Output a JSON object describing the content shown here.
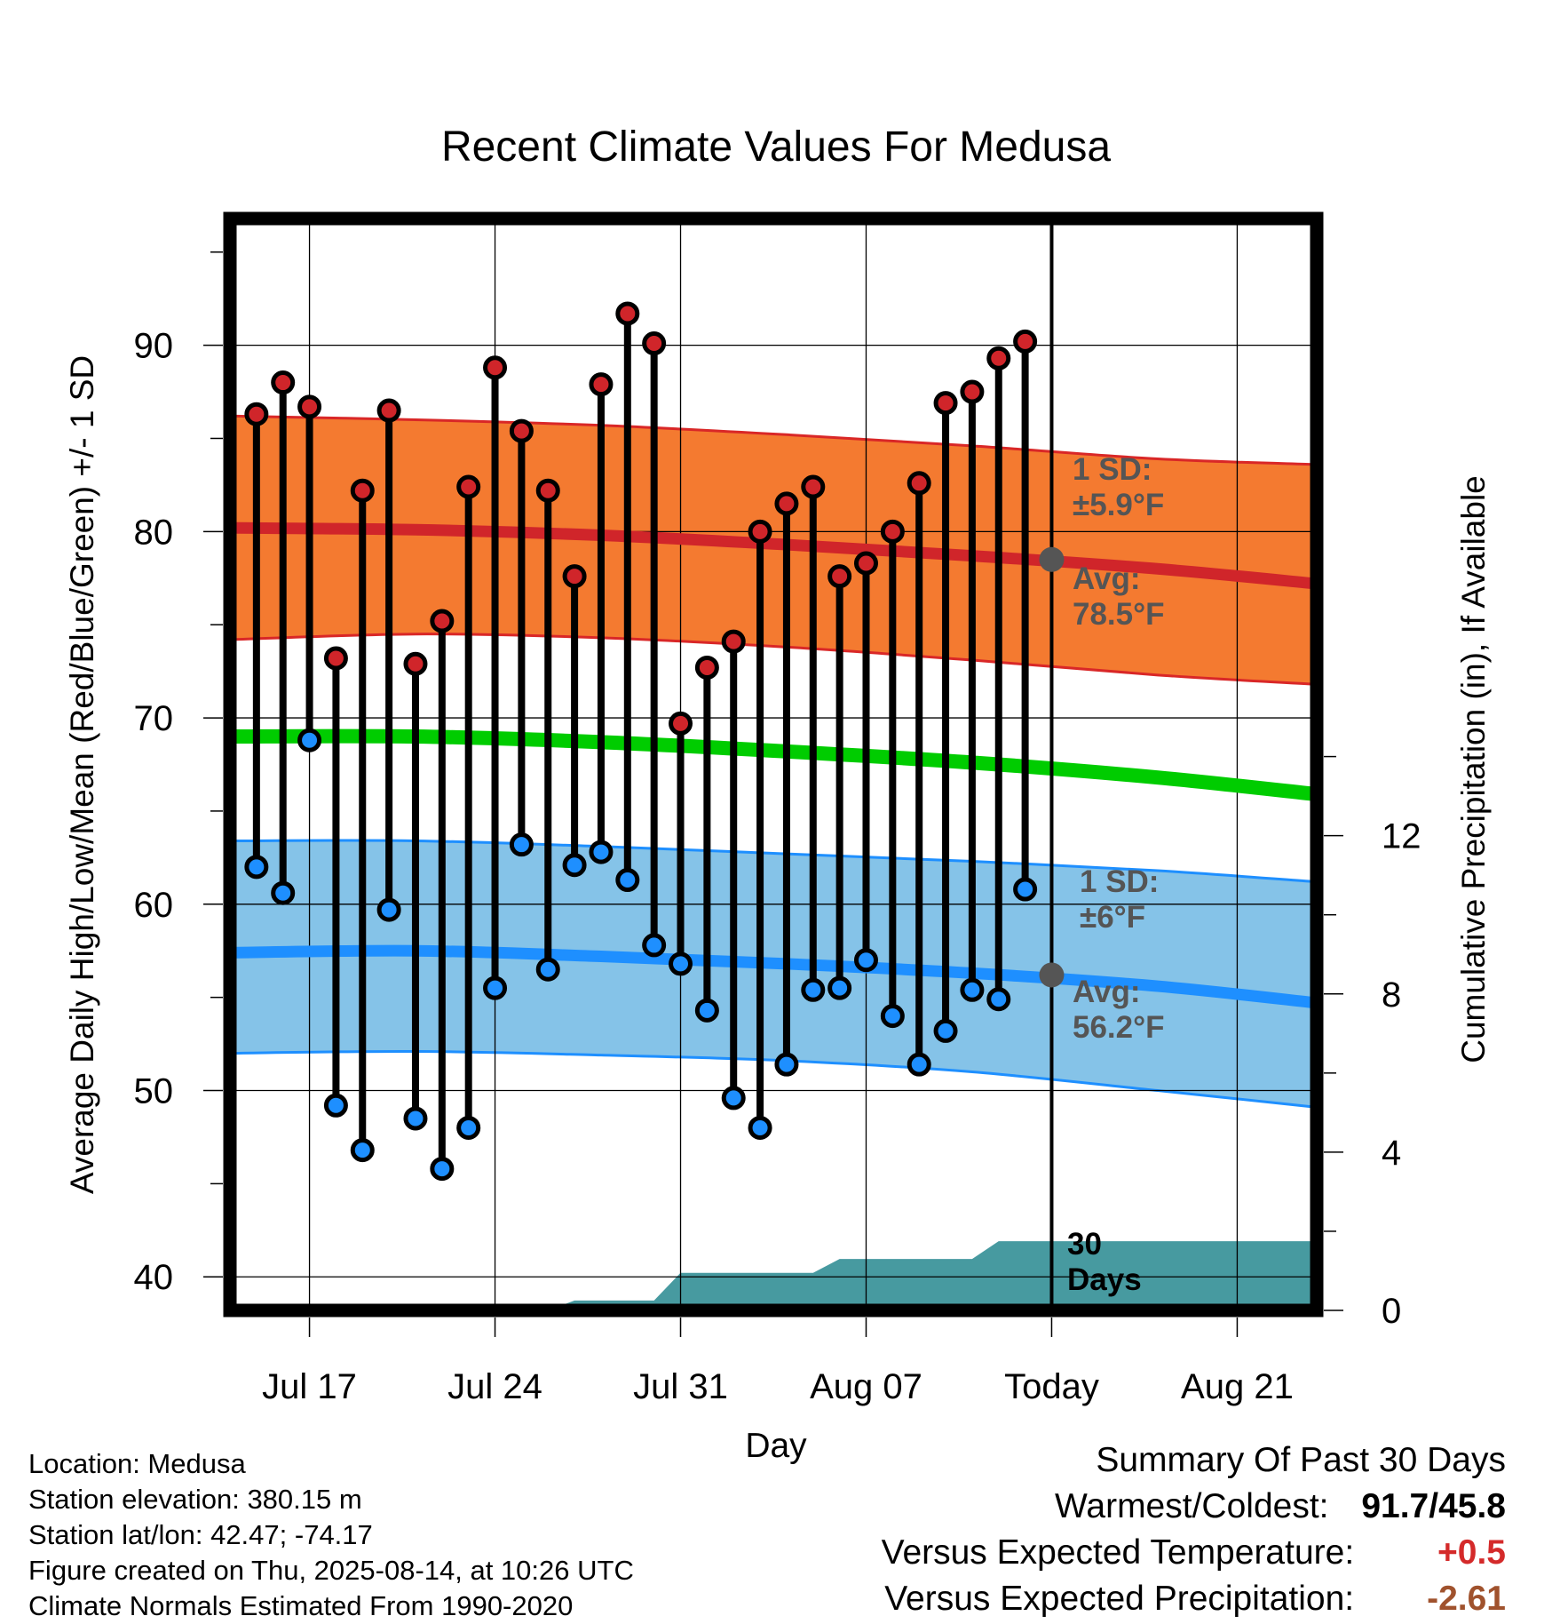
{
  "chart_data": {
    "type": "line",
    "title": "Recent Climate Values For Medusa",
    "xlabel": "Day",
    "ylabel": "Average Daily High/Low/Mean (Red/Blue/Green) +/- 1 SD",
    "y2label": "Cumulative Precipitation (in), If Available",
    "ylim": [
      38.2,
      96.8
    ],
    "y2lim": [
      0,
      27.6
    ],
    "yticks": [
      40,
      50,
      60,
      70,
      80,
      90
    ],
    "y2ticks": [
      0,
      4,
      8,
      12
    ],
    "xlim": [
      "2025-07-14",
      "2025-08-24"
    ],
    "xticks": [
      {
        "date": "2025-07-17",
        "label": "Jul 17"
      },
      {
        "date": "2025-07-24",
        "label": "Jul 24"
      },
      {
        "date": "2025-07-31",
        "label": "Jul 31"
      },
      {
        "date": "2025-08-07",
        "label": "Aug 07"
      },
      {
        "date": "2025-08-14",
        "label": "Today"
      },
      {
        "date": "2025-08-21",
        "label": "Aug 21"
      }
    ],
    "grid": true,
    "today": "2025-08-14",
    "normal_dates": [
      "2025-07-14",
      "2025-07-21",
      "2025-07-28",
      "2025-08-04",
      "2025-08-11",
      "2025-08-18",
      "2025-08-24"
    ],
    "normal_high": {
      "mean": [
        80.2,
        80.1,
        79.8,
        79.3,
        78.7,
        78.0,
        77.2
      ],
      "upper": [
        86.2,
        86.0,
        85.7,
        85.2,
        84.6,
        83.9,
        83.6
      ],
      "lower": [
        74.2,
        74.5,
        74.3,
        73.8,
        73.1,
        72.3,
        71.8
      ]
    },
    "normal_low": {
      "mean": [
        57.4,
        57.5,
        57.2,
        56.8,
        56.3,
        55.6,
        54.7
      ],
      "upper": [
        63.4,
        63.4,
        63.1,
        62.7,
        62.3,
        61.8,
        61.2
      ],
      "lower": [
        52.0,
        52.1,
        51.9,
        51.6,
        51.0,
        50.0,
        49.1
      ]
    },
    "normal_mean": [
      69.0,
      69.0,
      68.7,
      68.2,
      67.6,
      66.8,
      65.9
    ],
    "daily": {
      "dates": [
        "2025-07-15",
        "2025-07-16",
        "2025-07-17",
        "2025-07-18",
        "2025-07-19",
        "2025-07-20",
        "2025-07-21",
        "2025-07-22",
        "2025-07-23",
        "2025-07-24",
        "2025-07-25",
        "2025-07-26",
        "2025-07-27",
        "2025-07-28",
        "2025-07-29",
        "2025-07-30",
        "2025-07-31",
        "2025-08-01",
        "2025-08-02",
        "2025-08-03",
        "2025-08-04",
        "2025-08-05",
        "2025-08-06",
        "2025-08-07",
        "2025-08-08",
        "2025-08-09",
        "2025-08-10",
        "2025-08-11",
        "2025-08-12",
        "2025-08-13"
      ],
      "high": [
        86.3,
        88.0,
        86.7,
        73.2,
        82.2,
        86.5,
        72.9,
        75.2,
        82.4,
        88.8,
        85.4,
        82.2,
        77.6,
        87.9,
        91.7,
        90.1,
        69.7,
        72.7,
        74.1,
        80.0,
        81.5,
        82.4,
        77.6,
        78.3,
        80.0,
        82.6,
        86.9,
        87.5,
        89.3,
        90.2
      ],
      "low": [
        62.0,
        60.6,
        68.8,
        49.2,
        46.8,
        59.7,
        48.5,
        45.8,
        48.0,
        55.5,
        63.2,
        56.5,
        62.1,
        62.8,
        61.3,
        57.8,
        56.8,
        54.3,
        49.6,
        48.0,
        51.4,
        55.4,
        55.5,
        57.0,
        54.0,
        51.4,
        53.2,
        55.4,
        54.9,
        60.8
      ]
    },
    "precip": {
      "dates": [
        "2025-07-14",
        "2025-07-26",
        "2025-07-27",
        "2025-07-30",
        "2025-07-31",
        "2025-08-05",
        "2025-08-06",
        "2025-08-11",
        "2025-08-12",
        "2025-08-24"
      ],
      "values": [
        0,
        0,
        0.25,
        0.25,
        0.95,
        0.95,
        1.3,
        1.3,
        1.75,
        1.75
      ]
    },
    "annotations": {
      "high_sd": {
        "line1": "1 SD:",
        "line2": "±5.9°F"
      },
      "high_avg": {
        "line1": "Avg:",
        "line2": "78.5°F",
        "value": 78.5
      },
      "low_sd": {
        "line1": "1 SD:",
        "line2": "±6°F"
      },
      "low_avg": {
        "line1": "Avg:",
        "line2": "56.2°F",
        "value": 56.2
      },
      "precip_days": {
        "line1": "30",
        "line2": "Days"
      }
    },
    "colors": {
      "high_band": "#f47a30",
      "high_edge": "#d92727",
      "high_dot": "#d0252a",
      "low_band": "#85c3e8",
      "low_edge": "#1e8fff",
      "low_dot": "#1e8fff",
      "mean_line": "#00cc00",
      "precip": "#479aa0",
      "avg_marker": "#555555",
      "annotation_text": "#555555"
    }
  },
  "meta": {
    "location": "Location: Medusa",
    "elevation": "Station elevation: 380.15 m",
    "latlon": "Station lat/lon: 42.47; -74.17",
    "created": "Figure created on Thu, 2025-08-14, at 10:26 UTC",
    "normals": "Climate Normals Estimated From 1990-2020"
  },
  "summary": {
    "title": "Summary Of Past 30 Days",
    "warmest_label": "Warmest/Coldest:",
    "warmest_value": "91.7/45.8",
    "temp_label": "Versus Expected Temperature:",
    "temp_value": "+0.5",
    "precip_label": "Versus Expected Precipitation:",
    "precip_value": "-2.61"
  }
}
